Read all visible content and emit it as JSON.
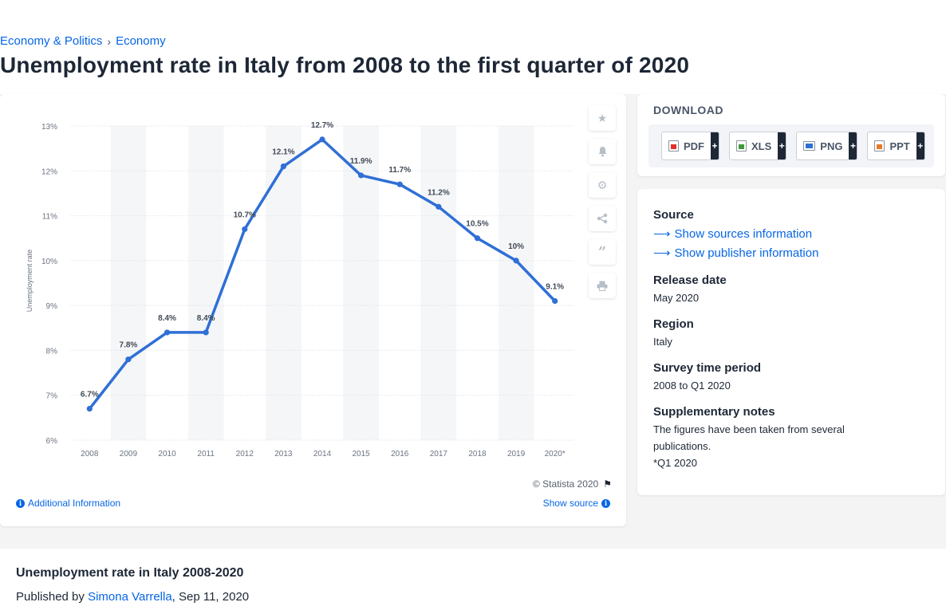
{
  "breadcrumb": {
    "items": [
      "Economy & Politics",
      "Economy"
    ],
    "separator": "›"
  },
  "page_title": "Unemployment rate in Italy from 2008 to the first quarter of 2020",
  "chart_data": {
    "type": "line",
    "categories": [
      "2008",
      "2009",
      "2010",
      "2011",
      "2012",
      "2013",
      "2014",
      "2015",
      "2016",
      "2017",
      "2018",
      "2019",
      "2020*"
    ],
    "values": [
      6.7,
      7.8,
      8.4,
      8.4,
      10.7,
      12.1,
      12.7,
      11.9,
      11.7,
      11.2,
      10.5,
      10,
      9.1
    ],
    "data_labels": [
      "6.7%",
      "7.8%",
      "8.4%",
      "8.4%",
      "10.7%",
      "12.1%",
      "12.7%",
      "11.9%",
      "11.7%",
      "11.2%",
      "10.5%",
      "10%",
      "9.1%"
    ],
    "ylabel": "Unemployment rate",
    "xlabel": "",
    "ylim": [
      6,
      13
    ],
    "yticks": [
      "6%",
      "7%",
      "8%",
      "9%",
      "10%",
      "11%",
      "12%",
      "13%"
    ],
    "grid": true,
    "line_color": "#2f6fd6"
  },
  "chart_footer": {
    "copyright": "© Statista 2020",
    "additional_info": "Additional Information",
    "show_source": "Show source"
  },
  "download": {
    "title": "DOWNLOAD",
    "buttons": [
      {
        "label": "PDF",
        "icon": "pdf-file-icon",
        "color": "#e2312b"
      },
      {
        "label": "XLS",
        "icon": "xls-file-icon",
        "color": "#3f9b3a"
      },
      {
        "label": "PNG",
        "icon": "png-file-icon",
        "color": "#2f6fd6"
      },
      {
        "label": "PPT",
        "icon": "ppt-file-icon",
        "color": "#e8792b"
      }
    ],
    "plus": "+"
  },
  "meta": {
    "source_heading": "Source",
    "show_sources": "Show sources information",
    "show_publisher": "Show publisher information",
    "release_heading": "Release date",
    "release_value": "May 2020",
    "region_heading": "Region",
    "region_value": "Italy",
    "survey_heading": "Survey time period",
    "survey_value": "2008 to Q1 2020",
    "notes_heading": "Supplementary notes",
    "notes_line1": "The figures have been taken from several publications.",
    "notes_line2": "*Q1 2020"
  },
  "bottom": {
    "title": "Unemployment rate in Italy 2008-2020",
    "published_prefix": "Published by",
    "author": "Simona Varrella",
    "date": ", Sep 11, 2020"
  },
  "tools": [
    "star-icon",
    "bell-icon",
    "gear-icon",
    "share-icon",
    "quote-icon",
    "print-icon"
  ]
}
